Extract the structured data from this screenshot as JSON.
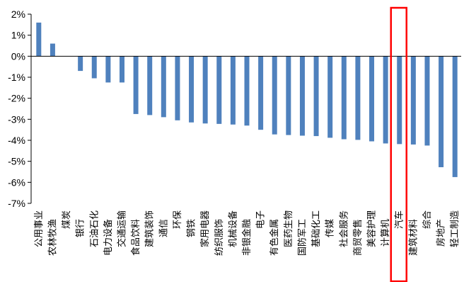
{
  "chart_data": {
    "type": "bar",
    "categories": [
      "公用事业",
      "农林牧渔",
      "煤炭",
      "银行",
      "石油石化",
      "电力设备",
      "交通运输",
      "食品饮料",
      "建筑装饰",
      "通信",
      "环保",
      "钢铁",
      "家用电器",
      "纺织服饰",
      "机械设备",
      "非银金融",
      "电子",
      "有色金属",
      "医药生物",
      "国防军工",
      "基础化工",
      "传媒",
      "社会服务",
      "商贸零售",
      "美容护理",
      "计算机",
      "汽车",
      "建筑材料",
      "综合",
      "房地产",
      "轻工制造"
    ],
    "values": [
      1.6,
      0.6,
      0.0,
      -0.7,
      -1.05,
      -1.25,
      -1.25,
      -2.75,
      -2.8,
      -2.9,
      -3.05,
      -3.15,
      -3.2,
      -3.22,
      -3.25,
      -3.3,
      -3.5,
      -3.72,
      -3.75,
      -3.78,
      -3.8,
      -3.88,
      -3.95,
      -3.98,
      -4.05,
      -4.15,
      -4.18,
      -4.2,
      -4.25,
      -5.28,
      -5.75
    ],
    "yticks": [
      "2%",
      "1%",
      "0%",
      "-1%",
      "-2%",
      "-3%",
      "-4%",
      "-5%",
      "-6%",
      "-7%"
    ],
    "ylim": [
      -7,
      2
    ],
    "bar_color": "#4f81bd",
    "highlight_category": "汽车",
    "highlight_color": "#ff0000",
    "grid": false
  }
}
